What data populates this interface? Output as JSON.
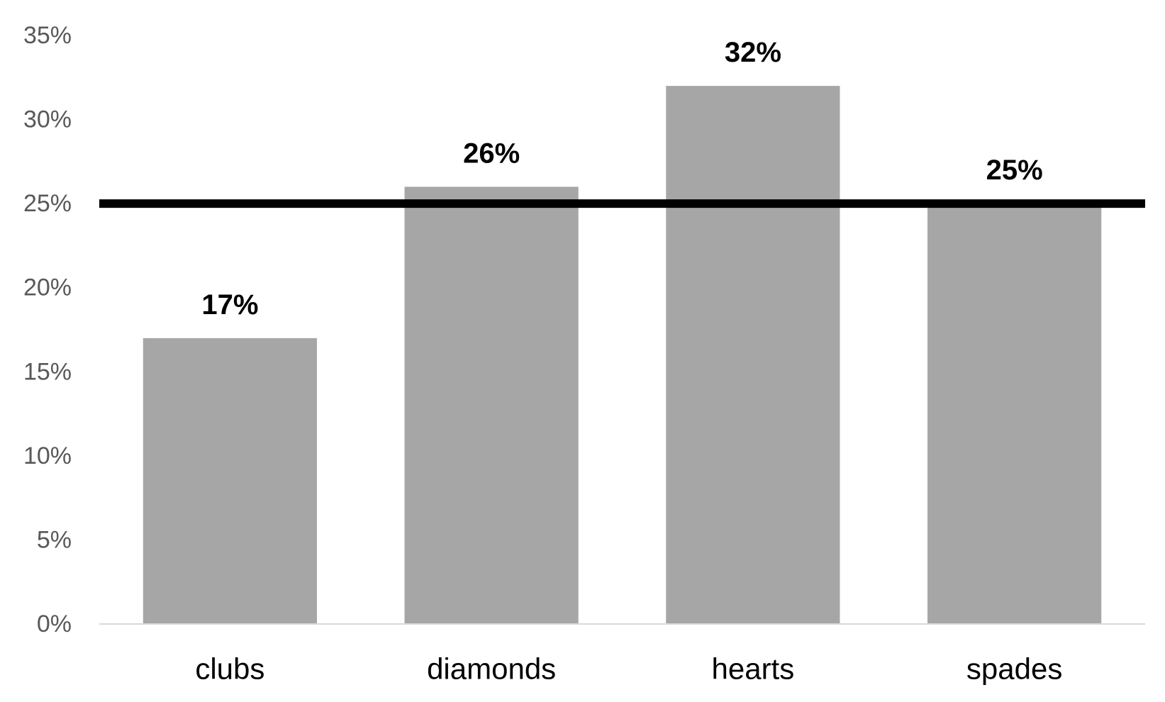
{
  "chart_data": {
    "type": "bar",
    "categories": [
      "clubs",
      "diamonds",
      "hearts",
      "spades"
    ],
    "values": [
      0.17,
      0.26,
      0.32,
      0.25
    ],
    "data_labels": [
      "17%",
      "26%",
      "32%",
      "25%"
    ],
    "ylim": [
      0,
      0.35
    ],
    "yticks": [
      0,
      0.05,
      0.1,
      0.15,
      0.2,
      0.25,
      0.3,
      0.35
    ],
    "ytick_labels": [
      "0%",
      "5%",
      "10%",
      "15%",
      "20%",
      "25%",
      "30%",
      "35%"
    ],
    "reference_line": 0.25,
    "grid": false,
    "legend": "none",
    "colors": {
      "bar": "#a6a6a6",
      "reference_line": "#000000",
      "axis": "#d9d9d9",
      "tick_text": "#595959",
      "label_text": "#000000"
    }
  }
}
